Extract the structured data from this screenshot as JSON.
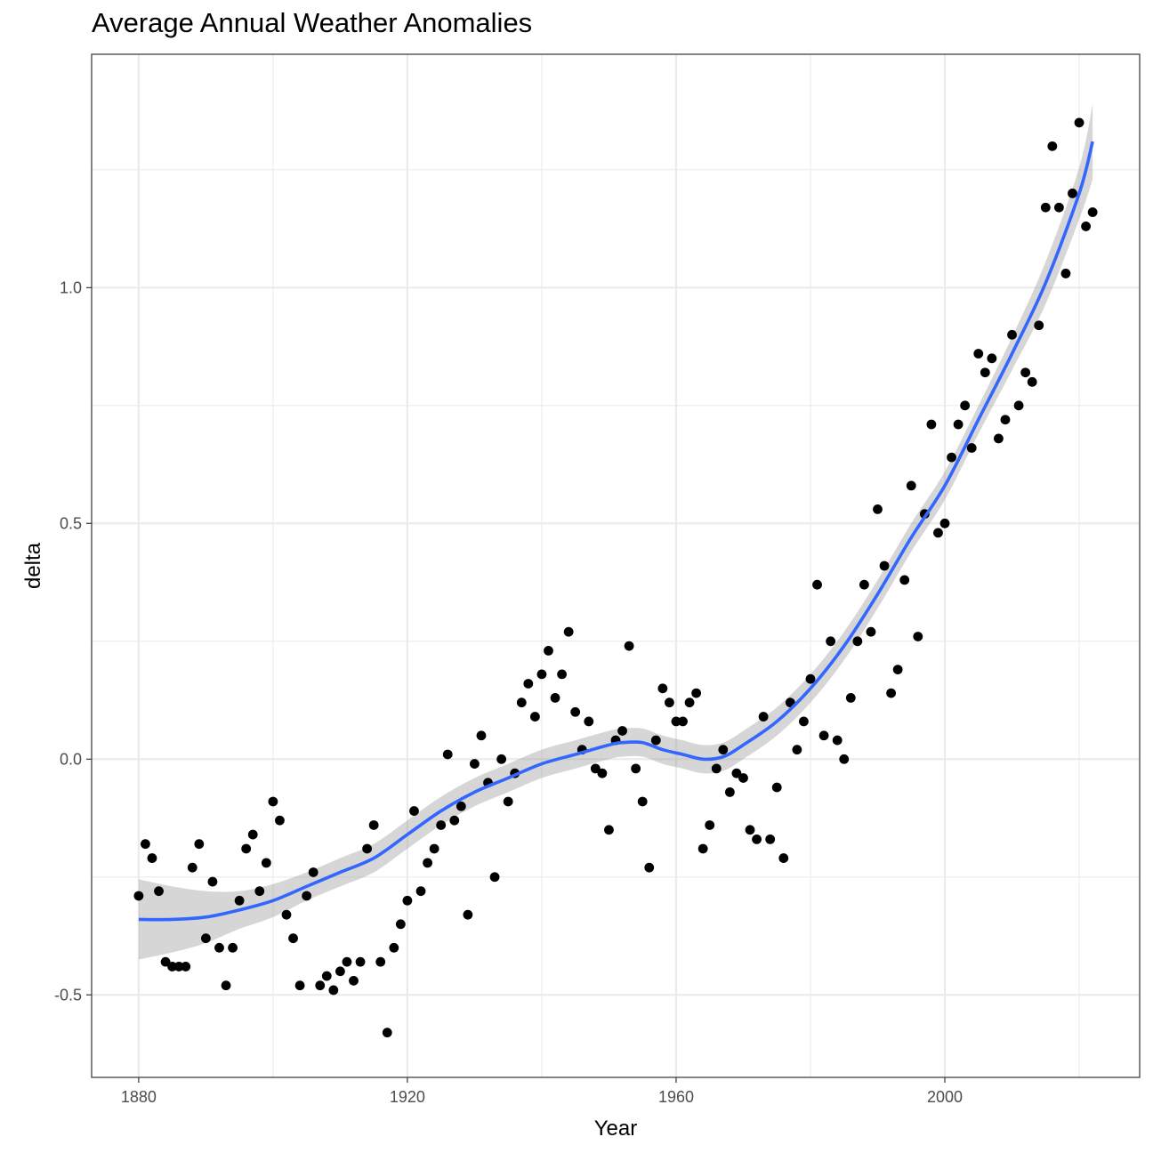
{
  "chart_data": {
    "type": "scatter",
    "title": "Average Annual Weather Anomalies",
    "xlabel": "Year",
    "ylabel": "delta",
    "xlim": [
      1873,
      2029
    ],
    "ylim": [
      -0.675,
      1.495
    ],
    "x_ticks": [
      1880,
      1920,
      1960,
      2000
    ],
    "x_tick_labels": [
      "1880",
      "1920",
      "1960",
      "2000"
    ],
    "y_ticks": [
      -0.5,
      0.0,
      0.5,
      1.0
    ],
    "y_tick_labels": [
      "-0.5",
      "0.0",
      "0.5",
      "1.0"
    ],
    "grid": true,
    "legend": "none",
    "colors": {
      "points": "#000000",
      "smooth_line": "#3366FF",
      "confidence_band": "#999999",
      "grid": "#ebebeb",
      "panel_border": "#333333"
    },
    "series": [
      {
        "type": "scatter",
        "x": [
          1880,
          1881,
          1882,
          1883,
          1884,
          1885,
          1886,
          1887,
          1888,
          1889,
          1890,
          1891,
          1892,
          1893,
          1894,
          1895,
          1896,
          1897,
          1898,
          1899,
          1900,
          1901,
          1902,
          1903,
          1904,
          1905,
          1906,
          1907,
          1908,
          1909,
          1910,
          1911,
          1912,
          1913,
          1914,
          1915,
          1916,
          1917,
          1918,
          1919,
          1920,
          1921,
          1922,
          1923,
          1924,
          1925,
          1926,
          1927,
          1928,
          1929,
          1930,
          1931,
          1932,
          1933,
          1934,
          1935,
          1936,
          1937,
          1938,
          1939,
          1940,
          1941,
          1942,
          1943,
          1944,
          1945,
          1946,
          1947,
          1948,
          1949,
          1950,
          1951,
          1952,
          1953,
          1954,
          1955,
          1956,
          1957,
          1958,
          1959,
          1960,
          1961,
          1962,
          1963,
          1964,
          1965,
          1966,
          1967,
          1968,
          1969,
          1970,
          1971,
          1972,
          1973,
          1974,
          1975,
          1976,
          1977,
          1978,
          1979,
          1980,
          1981,
          1982,
          1983,
          1984,
          1985,
          1986,
          1987,
          1988,
          1989,
          1990,
          1991,
          1992,
          1993,
          1994,
          1995,
          1996,
          1997,
          1998,
          1999,
          2000,
          2001,
          2002,
          2003,
          2004,
          2005,
          2006,
          2007,
          2008,
          2009,
          2010,
          2011,
          2012,
          2013,
          2014,
          2015,
          2016,
          2017,
          2018,
          2019,
          2020,
          2021,
          2022
        ],
        "y": [
          -0.29,
          -0.18,
          -0.21,
          -0.28,
          -0.43,
          -0.44,
          -0.44,
          -0.44,
          -0.23,
          -0.18,
          -0.38,
          -0.26,
          -0.4,
          -0.48,
          -0.4,
          -0.3,
          -0.19,
          -0.16,
          -0.28,
          -0.22,
          -0.09,
          -0.13,
          -0.33,
          -0.38,
          -0.48,
          -0.29,
          -0.24,
          -0.48,
          -0.46,
          -0.49,
          -0.45,
          -0.43,
          -0.47,
          -0.43,
          -0.19,
          -0.14,
          -0.43,
          -0.58,
          -0.4,
          -0.35,
          -0.3,
          -0.11,
          -0.28,
          -0.22,
          -0.19,
          -0.14,
          0.01,
          -0.13,
          -0.1,
          -0.33,
          -0.01,
          0.05,
          -0.05,
          -0.25,
          0.0,
          -0.09,
          -0.03,
          0.12,
          0.16,
          0.09,
          0.18,
          0.23,
          0.13,
          0.18,
          0.27,
          0.1,
          0.02,
          0.08,
          -0.02,
          -0.03,
          -0.15,
          0.04,
          0.06,
          0.24,
          -0.02,
          -0.09,
          -0.23,
          0.04,
          0.15,
          0.12,
          0.08,
          0.08,
          0.12,
          0.14,
          -0.19,
          -0.14,
          -0.02,
          0.02,
          -0.07,
          -0.03,
          -0.04,
          -0.15,
          -0.17,
          0.09,
          -0.17,
          -0.06,
          -0.21,
          0.12,
          0.02,
          0.08,
          0.17,
          0.37,
          0.05,
          0.25,
          0.04,
          0.0,
          0.13,
          0.25,
          0.37,
          0.27,
          0.53,
          0.41,
          0.14,
          0.19,
          0.38,
          0.58,
          0.26,
          0.52,
          0.71,
          0.48,
          0.5,
          0.64,
          0.71,
          0.75,
          0.66,
          0.86,
          0.82,
          0.85,
          0.68,
          0.72,
          0.9,
          0.75,
          0.82,
          0.8,
          0.92,
          1.17,
          1.3,
          1.17,
          1.03,
          1.2,
          1.35,
          1.13,
          1.16
        ]
      },
      {
        "type": "smooth",
        "x": [
          1880,
          1885,
          1890,
          1895,
          1900,
          1905,
          1910,
          1915,
          1920,
          1925,
          1930,
          1935,
          1940,
          1945,
          1950,
          1952,
          1955,
          1958,
          1961,
          1964,
          1967,
          1970,
          1975,
          1980,
          1985,
          1990,
          1995,
          2000,
          2005,
          2010,
          2015,
          2020,
          2022
        ],
        "y": [
          -0.34,
          -0.34,
          -0.335,
          -0.32,
          -0.3,
          -0.27,
          -0.24,
          -0.21,
          -0.16,
          -0.11,
          -0.07,
          -0.04,
          -0.01,
          0.01,
          0.03,
          0.035,
          0.035,
          0.02,
          0.01,
          0.0,
          0.005,
          0.03,
          0.08,
          0.15,
          0.24,
          0.35,
          0.47,
          0.58,
          0.72,
          0.86,
          1.01,
          1.2,
          1.31
        ],
        "se": [
          0.085,
          0.07,
          0.055,
          0.04,
          0.035,
          0.03,
          0.03,
          0.03,
          0.03,
          0.03,
          0.03,
          0.03,
          0.03,
          0.03,
          0.03,
          0.03,
          0.03,
          0.03,
          0.03,
          0.03,
          0.03,
          0.03,
          0.03,
          0.03,
          0.03,
          0.03,
          0.03,
          0.03,
          0.03,
          0.035,
          0.045,
          0.055,
          0.08
        ]
      }
    ]
  }
}
